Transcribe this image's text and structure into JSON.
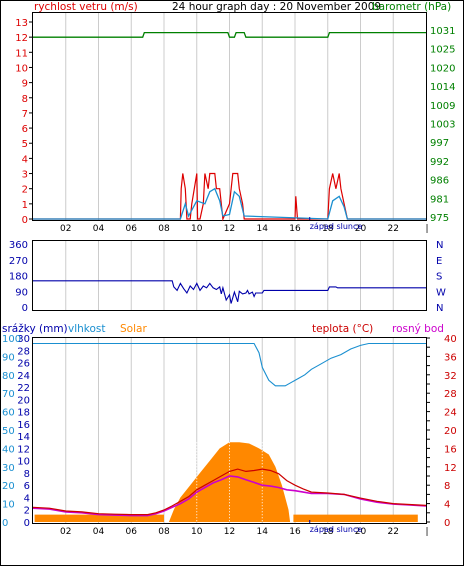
{
  "header": {
    "title": "24 hour graph day : 20 November 2009",
    "left_label": "rychlost vetru (m/s)",
    "right_label": "barometr (hPa)"
  },
  "colors": {
    "wind": "#dd0000",
    "wind_avg": "#1a8fd0",
    "pressure": "#008000",
    "direction": "#0000aa",
    "humidity": "#1a8fd0",
    "solar": "#ff8800",
    "temperature": "#cc0000",
    "dewpoint": "#cc00cc",
    "rain_axis": "#0000aa",
    "grid": "#cccccc",
    "sunrise": "#0000aa"
  },
  "x_axis": {
    "hour_labels": [
      "02",
      "04",
      "06",
      "08",
      "10",
      "12",
      "14",
      "16",
      "18",
      "20",
      "22"
    ],
    "sun_label": "západ slunce"
  },
  "chart_data": [
    {
      "type": "line",
      "name": "wind-pressure",
      "x_range": [
        0,
        24
      ],
      "left_axis": {
        "label": "rychlost vetru (m/s)",
        "ticks": [
          0,
          1,
          2,
          3,
          4,
          5,
          6,
          7,
          8,
          9,
          10,
          11,
          12,
          13
        ],
        "range": [
          0,
          13
        ]
      },
      "right_axis": {
        "label": "barometr (hPa)",
        "tick_labels": [
          "975",
          "981",
          "986",
          "992",
          "997",
          "1003",
          "1009",
          "1014",
          "1020",
          "1025",
          "1031"
        ]
      },
      "series": [
        {
          "name": "rychlost vetru (m/s)",
          "points": [
            [
              0,
              0
            ],
            [
              9.0,
              0
            ],
            [
              9.05,
              2
            ],
            [
              9.15,
              3
            ],
            [
              9.3,
              2
            ],
            [
              9.4,
              0
            ],
            [
              9.6,
              0
            ],
            [
              9.7,
              1
            ],
            [
              10.0,
              3
            ],
            [
              10.05,
              0
            ],
            [
              10.2,
              0
            ],
            [
              10.4,
              1
            ],
            [
              10.5,
              3
            ],
            [
              10.7,
              2
            ],
            [
              10.8,
              3
            ],
            [
              11.1,
              3
            ],
            [
              11.2,
              2
            ],
            [
              11.4,
              2
            ],
            [
              11.5,
              1
            ],
            [
              11.6,
              0
            ],
            [
              12.0,
              1
            ],
            [
              12.2,
              3
            ],
            [
              12.5,
              3
            ],
            [
              12.6,
              2
            ],
            [
              12.8,
              1
            ],
            [
              12.9,
              0
            ],
            [
              16.0,
              0
            ],
            [
              16.05,
              1.5
            ],
            [
              16.15,
              0
            ],
            [
              18.0,
              0
            ],
            [
              18.1,
              2
            ],
            [
              18.3,
              3
            ],
            [
              18.5,
              2
            ],
            [
              18.7,
              3
            ],
            [
              18.8,
              2
            ],
            [
              19.0,
              1
            ],
            [
              19.2,
              0
            ],
            [
              24,
              0
            ]
          ]
        },
        {
          "name": "prumerny vitr",
          "points": [
            [
              0,
              0
            ],
            [
              9.0,
              0
            ],
            [
              9.3,
              1.0
            ],
            [
              9.5,
              0.2
            ],
            [
              10.0,
              1.2
            ],
            [
              10.5,
              1.0
            ],
            [
              10.8,
              1.8
            ],
            [
              11.1,
              2.0
            ],
            [
              11.4,
              1.2
            ],
            [
              11.6,
              0.2
            ],
            [
              12.0,
              0.3
            ],
            [
              12.3,
              1.8
            ],
            [
              12.6,
              1.5
            ],
            [
              12.9,
              0.2
            ],
            [
              18.0,
              0
            ],
            [
              18.3,
              1.2
            ],
            [
              18.7,
              1.5
            ],
            [
              19.0,
              0.8
            ],
            [
              19.2,
              0
            ],
            [
              24,
              0
            ]
          ]
        },
        {
          "name": "barometr (hPa)",
          "points": [
            [
              0,
              12.0
            ],
            [
              6.7,
              12.0
            ],
            [
              6.8,
              12.3
            ],
            [
              11.9,
              12.3
            ],
            [
              12.0,
              12.0
            ],
            [
              12.3,
              12.0
            ],
            [
              12.4,
              12.3
            ],
            [
              12.9,
              12.3
            ],
            [
              13.0,
              12.0
            ],
            [
              18.0,
              12.0
            ],
            [
              18.1,
              12.3
            ],
            [
              24,
              12.3
            ]
          ]
        }
      ]
    },
    {
      "type": "line",
      "name": "wind-direction",
      "x_range": [
        0,
        24
      ],
      "left_axis": {
        "ticks": [
          0,
          90,
          180,
          270,
          360
        ],
        "range": [
          0,
          360
        ]
      },
      "right_axis": {
        "tick_labels": [
          "N",
          "W",
          "S",
          "E",
          "N"
        ]
      },
      "series": [
        {
          "name": "smer vetru",
          "points": [
            [
              0,
              150
            ],
            [
              8.5,
              150
            ],
            [
              8.6,
              115
            ],
            [
              8.8,
              95
            ],
            [
              9.0,
              135
            ],
            [
              9.2,
              105
            ],
            [
              9.4,
              80
            ],
            [
              9.6,
              120
            ],
            [
              9.8,
              100
            ],
            [
              10.0,
              135
            ],
            [
              10.2,
              95
            ],
            [
              10.4,
              120
            ],
            [
              10.6,
              110
            ],
            [
              10.8,
              135
            ],
            [
              11.0,
              110
            ],
            [
              11.2,
              100
            ],
            [
              11.4,
              115
            ],
            [
              11.5,
              75
            ],
            [
              11.6,
              110
            ],
            [
              11.8,
              40
            ],
            [
              12.0,
              70
            ],
            [
              12.1,
              20
            ],
            [
              12.3,
              85
            ],
            [
              12.5,
              30
            ],
            [
              12.6,
              90
            ],
            [
              12.8,
              75
            ],
            [
              13.0,
              80
            ],
            [
              13.1,
              95
            ],
            [
              13.2,
              75
            ],
            [
              13.4,
              85
            ],
            [
              13.5,
              60
            ],
            [
              13.6,
              80
            ],
            [
              14.0,
              80
            ],
            [
              14.1,
              95
            ],
            [
              18.0,
              95
            ],
            [
              18.1,
              115
            ],
            [
              18.5,
              115
            ],
            [
              18.6,
              110
            ],
            [
              24,
              110
            ]
          ]
        }
      ]
    },
    {
      "type": "line",
      "name": "temperature-humidity-solar",
      "x_range": [
        0,
        24
      ],
      "legend": [
        "srážky (mm)",
        "vlhkost",
        "Solar",
        "teplota (°C)",
        "rosný bod"
      ],
      "left_axis": {
        "label": "srážky (mm)",
        "ticks": [
          0,
          2,
          4,
          6,
          8,
          10,
          12,
          14,
          16,
          18,
          20,
          22,
          24,
          26,
          28,
          30
        ],
        "range": [
          0,
          30
        ]
      },
      "left_axis_2": {
        "label": "vlhkost",
        "tick_labels": [
          "0",
          "10",
          "20",
          "30",
          "40",
          "50",
          "60",
          "70",
          "80",
          "90",
          "100"
        ]
      },
      "right_axis": {
        "label": "teplota (°C)",
        "ticks": [
          0,
          2,
          4,
          6,
          8,
          10,
          12,
          14,
          16,
          18,
          20,
          22,
          24,
          26,
          28,
          30,
          32,
          34,
          36,
          38,
          40
        ],
        "tick_labels": [
          "0",
          "4",
          "8",
          "12",
          "16",
          "20",
          "24",
          "28",
          "32",
          "36",
          "40"
        ]
      },
      "series": [
        {
          "name": "vlhkost",
          "points": [
            [
              0,
              97
            ],
            [
              13.5,
              97
            ],
            [
              13.8,
              92
            ],
            [
              14.0,
              84
            ],
            [
              14.4,
              77
            ],
            [
              14.8,
              74
            ],
            [
              15.4,
              74
            ],
            [
              15.8,
              76
            ],
            [
              16.2,
              78
            ],
            [
              16.6,
              80
            ],
            [
              17.0,
              83
            ],
            [
              17.6,
              86
            ],
            [
              18.2,
              89
            ],
            [
              18.8,
              91
            ],
            [
              19.4,
              94
            ],
            [
              20.0,
              96
            ],
            [
              20.5,
              97
            ],
            [
              24,
              97
            ]
          ]
        },
        {
          "name": "Solar",
          "points": [
            [
              0,
              0
            ],
            [
              0.1,
              0
            ],
            [
              0.1,
              1.2
            ],
            [
              8.0,
              1.2
            ],
            [
              8.0,
              0
            ],
            [
              8.3,
              0
            ],
            [
              8.6,
              2
            ],
            [
              9.0,
              4
            ],
            [
              9.6,
              6
            ],
            [
              10.2,
              8
            ],
            [
              10.8,
              10
            ],
            [
              11.4,
              12
            ],
            [
              12.0,
              13
            ],
            [
              12.6,
              13
            ],
            [
              13.2,
              12.8
            ],
            [
              13.8,
              12
            ],
            [
              14.4,
              11
            ],
            [
              14.8,
              9
            ],
            [
              15.2,
              6
            ],
            [
              15.6,
              2
            ],
            [
              15.7,
              0
            ],
            [
              15.9,
              0
            ],
            [
              15.9,
              1.2
            ],
            [
              23.5,
              1.2
            ],
            [
              23.5,
              0
            ]
          ]
        },
        {
          "name": "teplota (°C)",
          "points": [
            [
              0,
              3.2
            ],
            [
              1,
              3.0
            ],
            [
              2,
              2.4
            ],
            [
              3,
              2.2
            ],
            [
              4,
              1.8
            ],
            [
              5,
              1.7
            ],
            [
              6,
              1.6
            ],
            [
              7,
              1.6
            ],
            [
              7.5,
              2.0
            ],
            [
              8,
              2.6
            ],
            [
              8.5,
              3.5
            ],
            [
              9,
              4.5
            ],
            [
              9.5,
              5.5
            ],
            [
              10,
              7.0
            ],
            [
              10.5,
              8.0
            ],
            [
              11,
              9.0
            ],
            [
              11.5,
              10.0
            ],
            [
              12,
              11.0
            ],
            [
              12.5,
              11.5
            ],
            [
              13,
              11.0
            ],
            [
              13.5,
              11.2
            ],
            [
              14,
              11.5
            ],
            [
              14.5,
              11.2
            ],
            [
              15,
              10.5
            ],
            [
              15.5,
              9.0
            ],
            [
              16,
              8.0
            ],
            [
              16.5,
              7.2
            ],
            [
              17,
              6.5
            ],
            [
              18,
              6.3
            ],
            [
              19,
              6.0
            ],
            [
              20,
              5.2
            ],
            [
              21,
              4.5
            ],
            [
              22,
              4.0
            ],
            [
              23,
              3.8
            ],
            [
              24,
              3.6
            ]
          ]
        },
        {
          "name": "rosný bod",
          "points": [
            [
              0,
              3.0
            ],
            [
              1,
              2.8
            ],
            [
              2,
              2.2
            ],
            [
              3,
              2.0
            ],
            [
              4,
              1.6
            ],
            [
              5,
              1.5
            ],
            [
              6,
              1.4
            ],
            [
              7,
              1.4
            ],
            [
              7.5,
              1.8
            ],
            [
              8,
              2.4
            ],
            [
              8.5,
              3.2
            ],
            [
              9,
              4.0
            ],
            [
              9.5,
              5.0
            ],
            [
              10,
              6.5
            ],
            [
              10.5,
              7.5
            ],
            [
              11,
              8.5
            ],
            [
              11.5,
              9.2
            ],
            [
              12,
              10.0
            ],
            [
              12.5,
              9.8
            ],
            [
              13,
              9.2
            ],
            [
              13.5,
              8.6
            ],
            [
              14,
              8.0
            ],
            [
              14.5,
              7.8
            ],
            [
              15,
              7.5
            ],
            [
              15.5,
              7.0
            ],
            [
              16,
              6.8
            ],
            [
              16.5,
              6.5
            ],
            [
              17,
              6.2
            ],
            [
              18,
              6.2
            ],
            [
              19,
              6.0
            ],
            [
              20,
              5.0
            ],
            [
              21,
              4.3
            ],
            [
              22,
              3.9
            ],
            [
              23,
              3.7
            ],
            [
              24,
              3.5
            ]
          ]
        }
      ]
    }
  ]
}
